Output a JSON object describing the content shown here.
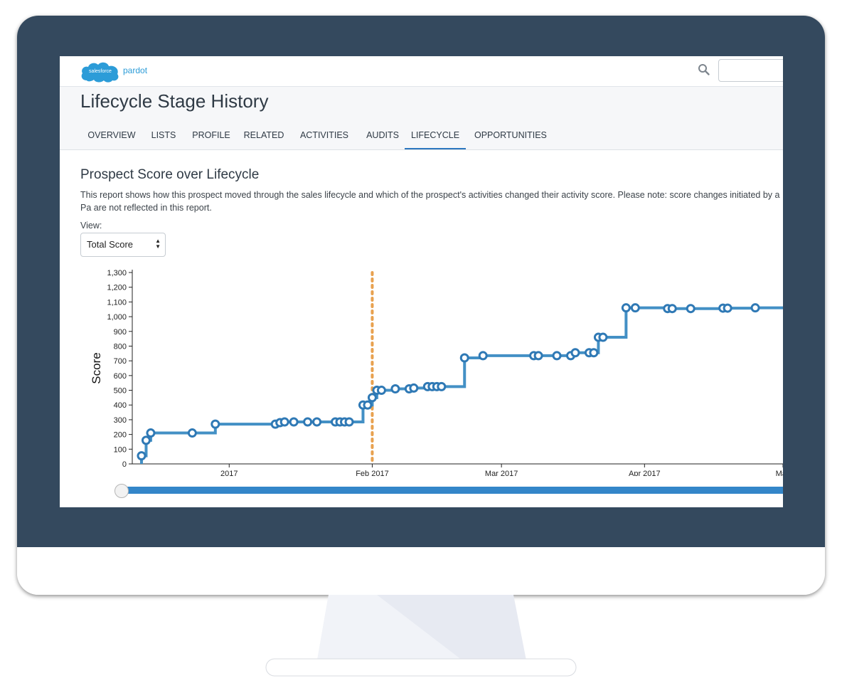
{
  "app": {
    "brand_cloud": "salesforce",
    "brand_product": "pardot"
  },
  "page": {
    "title": "Lifecycle Stage History"
  },
  "tabs": [
    {
      "label": "OVERVIEW",
      "active": false
    },
    {
      "label": "LISTS",
      "active": false
    },
    {
      "label": "PROFILE",
      "active": false
    },
    {
      "label": "RELATED",
      "active": false
    },
    {
      "label": "ACTIVITIES",
      "active": false
    },
    {
      "label": "AUDITS",
      "active": false
    },
    {
      "label": "LIFECYCLE",
      "active": true
    },
    {
      "label": "OPPORTUNITIES",
      "active": false
    }
  ],
  "report": {
    "title": "Prospect Score over Lifecycle",
    "description": "This report shows how this prospect moved through the sales lifecycle and which of the prospect's activities changed their activity score. Please note: score changes initiated by a Pa are not reflected in this report.",
    "view_label": "View:",
    "view_selected": "Total Score"
  },
  "icons": {
    "search": "search-icon",
    "select_caret": "updown-caret-icon"
  },
  "colors": {
    "bezel": "#34495e",
    "line": "#4390c5",
    "marker": "#2f79b5",
    "stage_marker": "#e8a14f",
    "slider": "#3386c9",
    "tab_active": "#2c77bf"
  },
  "chart_data": {
    "type": "line",
    "step": true,
    "ylabel": "Score",
    "xlabel": "",
    "ylim": [
      0,
      1300
    ],
    "yticks": [
      "0",
      "100",
      "200",
      "300",
      "400",
      "500",
      "600",
      "700",
      "800",
      "900",
      "1,000",
      "1,100",
      "1,200",
      "1,300"
    ],
    "xlim": [
      "2016-12-11",
      "2017-05-01"
    ],
    "xticks": [
      {
        "date": "2017-01-01",
        "label": "2017"
      },
      {
        "date": "2017-02-01",
        "label": "Feb 2017"
      },
      {
        "date": "2017-03-01",
        "label": "Mar 2017"
      },
      {
        "date": "2017-04-01",
        "label": "Apr 2017"
      },
      {
        "date": "2017-05-01",
        "label": "May"
      }
    ],
    "stage_change": "2017-02-01",
    "series": [
      {
        "start": {
          "x": "2016-12-13",
          "y": 0
        },
        "points": [
          {
            "x": "2016-12-13",
            "y": 55
          },
          {
            "x": "2016-12-14",
            "y": 160
          },
          {
            "x": "2016-12-15",
            "y": 210
          },
          {
            "x": "2016-12-24",
            "y": 210
          },
          {
            "x": "2016-12-29",
            "y": 270
          },
          {
            "x": "2017-01-11",
            "y": 270
          },
          {
            "x": "2017-01-12",
            "y": 280
          },
          {
            "x": "2017-01-13",
            "y": 285
          },
          {
            "x": "2017-01-15",
            "y": 285
          },
          {
            "x": "2017-01-18",
            "y": 285
          },
          {
            "x": "2017-01-20",
            "y": 285
          },
          {
            "x": "2017-01-24",
            "y": 285
          },
          {
            "x": "2017-01-25",
            "y": 285
          },
          {
            "x": "2017-01-26",
            "y": 285
          },
          {
            "x": "2017-01-27",
            "y": 285
          },
          {
            "x": "2017-01-30",
            "y": 400
          },
          {
            "x": "2017-01-31",
            "y": 400
          },
          {
            "x": "2017-02-01",
            "y": 450
          },
          {
            "x": "2017-02-02",
            "y": 500
          },
          {
            "x": "2017-02-03",
            "y": 500
          },
          {
            "x": "2017-02-06",
            "y": 510
          },
          {
            "x": "2017-02-09",
            "y": 510
          },
          {
            "x": "2017-02-10",
            "y": 515
          },
          {
            "x": "2017-02-13",
            "y": 525
          },
          {
            "x": "2017-02-14",
            "y": 525
          },
          {
            "x": "2017-02-15",
            "y": 525
          },
          {
            "x": "2017-02-16",
            "y": 525
          },
          {
            "x": "2017-02-21",
            "y": 720
          },
          {
            "x": "2017-02-25",
            "y": 735
          },
          {
            "x": "2017-03-08",
            "y": 735
          },
          {
            "x": "2017-03-09",
            "y": 735
          },
          {
            "x": "2017-03-13",
            "y": 735
          },
          {
            "x": "2017-03-16",
            "y": 735
          },
          {
            "x": "2017-03-17",
            "y": 755
          },
          {
            "x": "2017-03-20",
            "y": 755
          },
          {
            "x": "2017-03-21",
            "y": 755
          },
          {
            "x": "2017-03-22",
            "y": 860
          },
          {
            "x": "2017-03-23",
            "y": 860
          },
          {
            "x": "2017-03-28",
            "y": 1060
          },
          {
            "x": "2017-03-30",
            "y": 1060
          },
          {
            "x": "2017-04-06",
            "y": 1055
          },
          {
            "x": "2017-04-07",
            "y": 1055
          },
          {
            "x": "2017-04-11",
            "y": 1055
          },
          {
            "x": "2017-04-18",
            "y": 1058
          },
          {
            "x": "2017-04-19",
            "y": 1058
          },
          {
            "x": "2017-04-25",
            "y": 1060
          }
        ]
      }
    ]
  }
}
